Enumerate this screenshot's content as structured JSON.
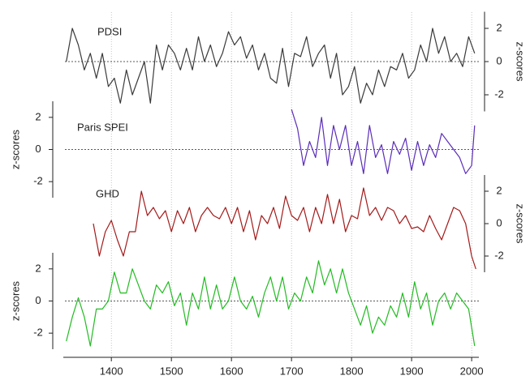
{
  "chart_data": [
    {
      "type": "line",
      "title": "PDSI",
      "ylabel": "z-scores",
      "y_axis_side": "right",
      "color": "#3a3a3a",
      "reference_line": 0,
      "xlim": [
        1320,
        2012
      ],
      "ylim": [
        -3,
        3
      ],
      "yticks": [
        -2,
        0,
        2
      ],
      "x": [
        1325,
        1335,
        1345,
        1355,
        1365,
        1375,
        1385,
        1395,
        1405,
        1415,
        1425,
        1435,
        1445,
        1455,
        1465,
        1475,
        1485,
        1495,
        1505,
        1515,
        1525,
        1535,
        1545,
        1555,
        1565,
        1575,
        1585,
        1595,
        1605,
        1615,
        1625,
        1635,
        1645,
        1655,
        1665,
        1675,
        1685,
        1695,
        1705,
        1715,
        1725,
        1735,
        1745,
        1755,
        1765,
        1775,
        1785,
        1795,
        1805,
        1815,
        1825,
        1835,
        1845,
        1855,
        1865,
        1875,
        1885,
        1895,
        1905,
        1915,
        1925,
        1935,
        1945,
        1955,
        1965,
        1975,
        1985,
        1995,
        2005
      ],
      "values": [
        0,
        2,
        1,
        -0.5,
        0.5,
        -1,
        0.5,
        -1.5,
        -1,
        -2.5,
        -0.5,
        -2,
        -1,
        0,
        -2.5,
        1,
        -0.5,
        1,
        0.5,
        -0.5,
        0.8,
        -0.5,
        1.5,
        0,
        1,
        -0.3,
        0.5,
        1.8,
        1,
        1.5,
        0.2,
        1,
        -0.5,
        0.5,
        -1,
        -1.3,
        0.8,
        -1.5,
        0.5,
        0.3,
        1.5,
        -0.3,
        0.5,
        1,
        -1,
        0.5,
        -2,
        -1.5,
        -0.3,
        -2.5,
        -1.3,
        -2,
        -0.5,
        -1.5,
        -0.3,
        -0.5,
        0.5,
        -1,
        -0.5,
        1,
        0,
        2,
        0.5,
        1.5,
        0,
        0.5,
        -0.3,
        1.5,
        0.5
      ]
    },
    {
      "type": "line",
      "title": "Paris SPEI",
      "ylabel": "z-scores",
      "y_axis_side": "left",
      "color": "#5a2db8",
      "reference_line": 0,
      "xlim": [
        1320,
        2012
      ],
      "ylim": [
        -3,
        3
      ],
      "yticks": [
        -2,
        0,
        2
      ],
      "x": [
        1700,
        1710,
        1720,
        1730,
        1740,
        1750,
        1760,
        1770,
        1780,
        1790,
        1800,
        1810,
        1820,
        1830,
        1840,
        1850,
        1860,
        1870,
        1880,
        1890,
        1900,
        1910,
        1920,
        1930,
        1940,
        1950,
        1960,
        1970,
        1980,
        1990,
        2000,
        2005
      ],
      "values": [
        2.5,
        1.3,
        -1,
        0.5,
        -0.5,
        2,
        -1,
        1.5,
        0,
        1.5,
        -1,
        0.5,
        -1.5,
        1.5,
        -0.5,
        0.3,
        -1.5,
        0.5,
        -0.3,
        0.7,
        -1.3,
        0.5,
        -1,
        0.3,
        -0.5,
        1,
        0.5,
        0,
        -0.5,
        -1.5,
        -1,
        1.5
      ]
    },
    {
      "type": "line",
      "title": "GHD",
      "ylabel": "z-scores",
      "y_axis_side": "right",
      "color": "#a31a1a",
      "xlim": [
        1320,
        2012
      ],
      "ylim": [
        -3,
        3
      ],
      "yticks": [
        -2,
        0,
        2
      ],
      "x": [
        1370,
        1380,
        1390,
        1400,
        1410,
        1420,
        1430,
        1440,
        1450,
        1460,
        1470,
        1480,
        1490,
        1500,
        1510,
        1520,
        1530,
        1540,
        1550,
        1560,
        1570,
        1580,
        1590,
        1600,
        1610,
        1620,
        1630,
        1640,
        1650,
        1660,
        1670,
        1680,
        1690,
        1700,
        1710,
        1720,
        1730,
        1740,
        1750,
        1760,
        1770,
        1780,
        1790,
        1800,
        1810,
        1820,
        1830,
        1840,
        1850,
        1860,
        1870,
        1880,
        1890,
        1900,
        1910,
        1920,
        1930,
        1940,
        1950,
        1960,
        1970,
        1980,
        1990,
        2000,
        2007
      ],
      "values": [
        0,
        -2,
        -0.5,
        0.2,
        -1,
        -2,
        -0.5,
        -0.5,
        2,
        0.5,
        1,
        0.3,
        0.8,
        -0.5,
        0.8,
        0,
        1,
        -0.5,
        0.5,
        1,
        0.5,
        0.3,
        1,
        0,
        1,
        -0.5,
        0.8,
        -1,
        0.5,
        0,
        1,
        -0.3,
        1.7,
        0.5,
        0.2,
        1,
        -0.5,
        1,
        0,
        1.8,
        0,
        1.5,
        -0.5,
        0.5,
        0.3,
        2.2,
        0.5,
        1,
        0.2,
        1,
        0.8,
        0,
        0.5,
        -0.3,
        -0.2,
        -0.5,
        0.5,
        -0.3,
        -1,
        0,
        1,
        0.8,
        0,
        -2,
        -2.8
      ]
    },
    {
      "type": "line",
      "ylabel": "z-scores",
      "y_axis_side": "left",
      "color": "#22bb22",
      "reference_line": 0,
      "xlim": [
        1320,
        2012
      ],
      "xticks": [
        1400,
        1500,
        1600,
        1700,
        1800,
        1900,
        2000
      ],
      "ylim": [
        -3,
        3
      ],
      "yticks": [
        -2,
        0,
        2
      ],
      "x": [
        1325,
        1335,
        1345,
        1355,
        1365,
        1375,
        1385,
        1395,
        1405,
        1415,
        1425,
        1435,
        1445,
        1455,
        1465,
        1475,
        1485,
        1495,
        1505,
        1515,
        1525,
        1535,
        1545,
        1555,
        1565,
        1575,
        1585,
        1595,
        1605,
        1615,
        1625,
        1635,
        1645,
        1655,
        1665,
        1675,
        1685,
        1695,
        1705,
        1715,
        1725,
        1735,
        1745,
        1755,
        1765,
        1775,
        1785,
        1795,
        1805,
        1815,
        1825,
        1835,
        1845,
        1855,
        1865,
        1875,
        1885,
        1895,
        1905,
        1915,
        1925,
        1935,
        1945,
        1955,
        1965,
        1975,
        1985,
        1995,
        2005
      ],
      "values": [
        -2.5,
        -1,
        0.2,
        -1,
        -2.8,
        -0.5,
        -0.5,
        0,
        1.8,
        0.5,
        0.5,
        2,
        1,
        0,
        -0.5,
        1,
        0.5,
        1.2,
        -0.3,
        0.5,
        -1.5,
        0.5,
        -0.5,
        1.5,
        -0.5,
        1,
        -0.5,
        0,
        1.5,
        0,
        -0.5,
        0.3,
        -1,
        0.5,
        1.5,
        0,
        1.5,
        -0.5,
        0.5,
        0,
        1.5,
        0.5,
        2.5,
        1,
        2,
        0.5,
        2,
        0.5,
        -0.5,
        -1.5,
        -0.3,
        -2,
        -1,
        -1.5,
        -0.3,
        -1,
        0.5,
        -1,
        1.2,
        -0.5,
        0.5,
        -1.5,
        0,
        0.5,
        -0.5,
        0.5,
        0,
        -0.5,
        -2.8
      ]
    }
  ]
}
